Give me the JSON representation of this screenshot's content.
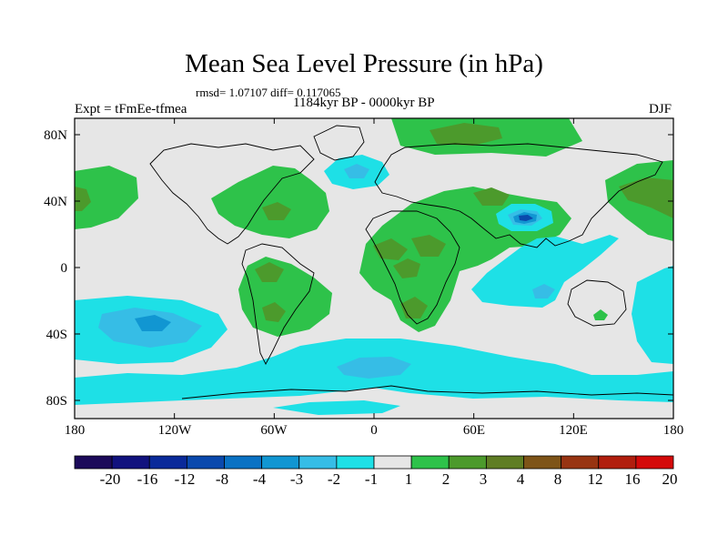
{
  "header": {
    "title": "Mean Sea Level Pressure (in hPa)",
    "stats": "rmsd= 1.07107 diff= 0.117065",
    "experiment": "Expt = tFmEe-tfmea",
    "period": "1184kyr BP - 0000kyr BP",
    "season": "DJF"
  },
  "axes": {
    "y_ticks": [
      "80N",
      "40N",
      "0",
      "40S",
      "80S"
    ],
    "x_ticks": [
      "180",
      "120W",
      "60W",
      "0",
      "60E",
      "120E",
      "180"
    ]
  },
  "colorbar": {
    "labels": [
      "-20",
      "-16",
      "-12",
      "-8",
      "-4",
      "-3",
      "-2",
      "-1",
      "1",
      "2",
      "3",
      "4",
      "8",
      "12",
      "16",
      "20"
    ],
    "colors": [
      "#1c0a5a",
      "#11127e",
      "#0a2a9a",
      "#0a49ad",
      "#0a72c4",
      "#1196d2",
      "#36bde6",
      "#1ee0e6",
      "#e6e6e6",
      "#2ec24a",
      "#4c9a2c",
      "#5f7d24",
      "#7e5418",
      "#983412",
      "#b11e0e",
      "#d40a0a"
    ]
  },
  "colors": {
    "background_field": "#e6e6e6",
    "positive_light": "#2ec24a",
    "positive_medium": "#4c9a2c",
    "positive_dark": "#5f7d24",
    "negative_light": "#1ee0e6",
    "negative_medium": "#36bde6",
    "negative_strong": "#1196d2",
    "negative_deep": "#0a49ad"
  }
}
